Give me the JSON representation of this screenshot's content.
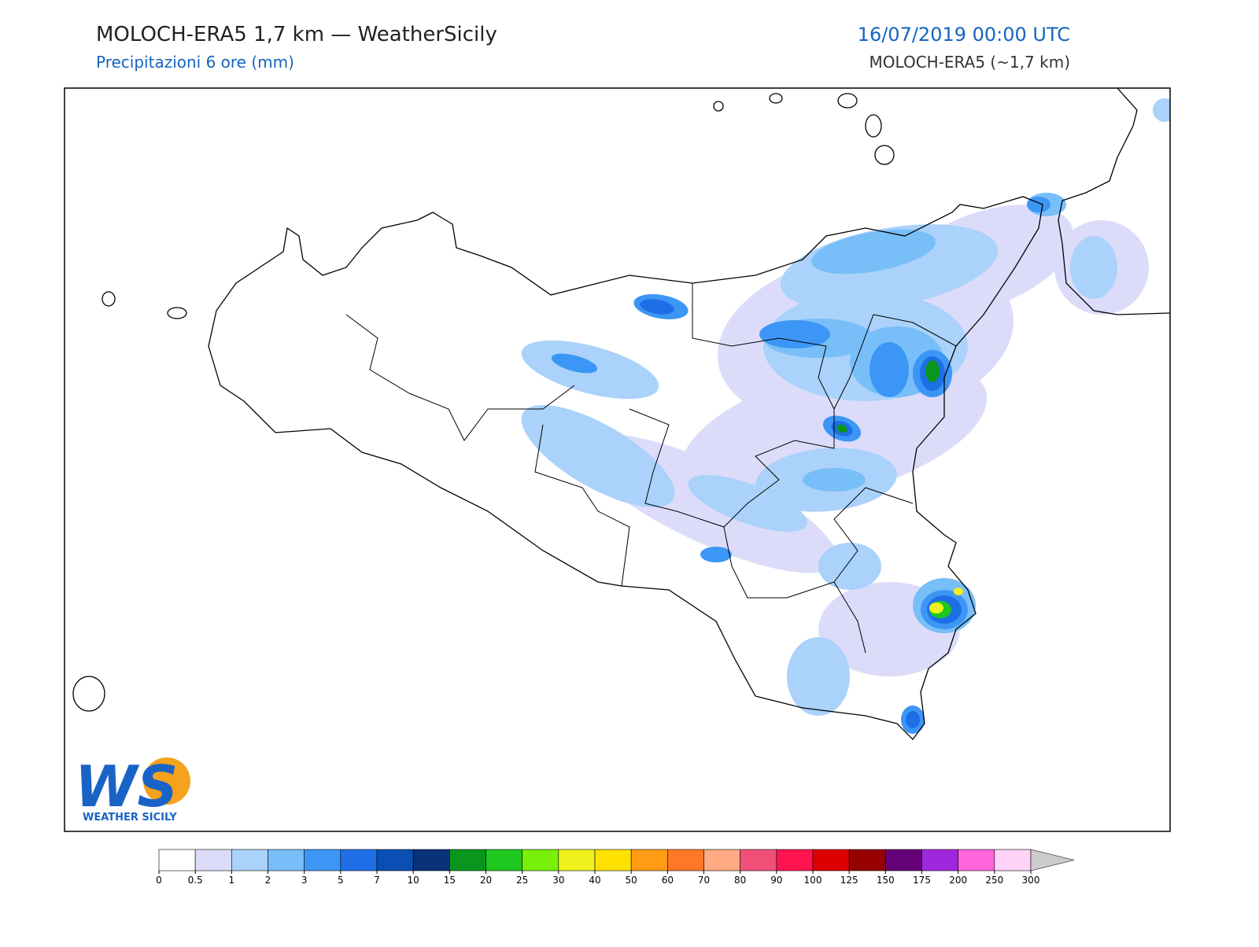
{
  "header": {
    "title": "MOLOCH-ERA5 1,7 km — WeatherSicily",
    "subtitle": "Precipitazioni 6 ore (mm)",
    "date": "16/07/2019 00:00 UTC",
    "model": "MOLOCH-ERA5 (~1,7 km)"
  },
  "colorbar": {
    "ticks": [
      0,
      0.5,
      1,
      2,
      3,
      5,
      7,
      10,
      15,
      20,
      25,
      30,
      40,
      50,
      60,
      70,
      80,
      90,
      100,
      125,
      150,
      175,
      200,
      250,
      300
    ],
    "colors": [
      "#ffffff",
      "#dcdcfa",
      "#aad2fa",
      "#78bef8",
      "#3c96f5",
      "#1e6ee6",
      "#0a50b4",
      "#0a3278",
      "#0a961e",
      "#1ec81e",
      "#78f00a",
      "#f0f01e",
      "#ffe100",
      "#ff9b14",
      "#ff7828",
      "#ffaa82",
      "#f05078",
      "#ff1450",
      "#dc0000",
      "#960000",
      "#640078",
      "#a028dc",
      "#ff64dc",
      "#ffd2f8"
    ],
    "over_color": "#cccccc"
  },
  "logo": {
    "mark": "WS",
    "text": "WEATHER SICILY"
  }
}
